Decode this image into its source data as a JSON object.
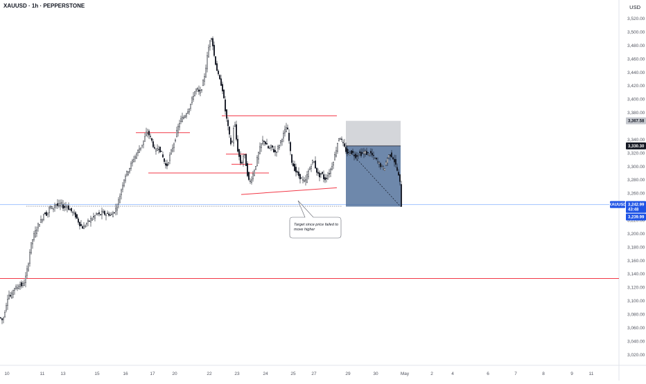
{
  "header": {
    "title": "XAUUSD · 1h · PEPPERSTONE",
    "currency": "USD"
  },
  "colors": {
    "candle": "#131722",
    "level": "#f23645",
    "box_loss": "#c5c8ce",
    "box_profit": "#4a6a96",
    "price_tag": "#1e53e5"
  },
  "chart_data": {
    "type": "candlestick",
    "symbol": "XAUUSD",
    "timeframe": "1h",
    "ylim": [
      3010,
      3535
    ],
    "y_ticks": [
      3020,
      3040,
      3060,
      3080,
      3100,
      3120,
      3140,
      3160,
      3180,
      3200,
      3220,
      3260,
      3280,
      3300,
      3320,
      3340,
      3380,
      3400,
      3420,
      3440,
      3460,
      3480,
      3500,
      3520
    ],
    "y_tick_labels": [
      "3,020.00",
      "3,040.00",
      "3,060.00",
      "3,080.00",
      "3,100.00",
      "3,120.00",
      "3,140.00",
      "3,160.00",
      "3,180.00",
      "3,200.00",
      "3,220.00",
      "3,260.00",
      "3,280.00",
      "3,300.00",
      "3,320.00",
      "3,340.00",
      "3,380.00",
      "3,400.00",
      "3,420.00",
      "3,440.00",
      "3,460.00",
      "3,480.00",
      "3,500.00",
      "3,520.00"
    ],
    "x_labels": [
      "10",
      "11",
      "13",
      "15",
      "16",
      "17",
      "20",
      "22",
      "23",
      "24",
      "25",
      "27",
      "29",
      "30",
      "May",
      "2",
      "4",
      "6",
      "7",
      "8",
      "9",
      "11"
    ],
    "series_path": [
      [
        0,
        3075
      ],
      [
        4,
        3070
      ],
      [
        8,
        3090
      ],
      [
        12,
        3110
      ],
      [
        16,
        3105
      ],
      [
        20,
        3120
      ],
      [
        24,
        3118
      ],
      [
        28,
        3125
      ],
      [
        32,
        3122
      ],
      [
        36,
        3130
      ],
      [
        40,
        3150
      ],
      [
        44,
        3180
      ],
      [
        48,
        3195
      ],
      [
        52,
        3205
      ],
      [
        56,
        3215
      ],
      [
        60,
        3220
      ],
      [
        64,
        3232
      ],
      [
        68,
        3228
      ],
      [
        72,
        3240
      ],
      [
        76,
        3237
      ],
      [
        80,
        3245
      ],
      [
        84,
        3240
      ],
      [
        88,
        3245
      ],
      [
        92,
        3238
      ],
      [
        96,
        3242
      ],
      [
        100,
        3236
      ],
      [
        104,
        3232
      ],
      [
        108,
        3228
      ],
      [
        112,
        3220
      ],
      [
        116,
        3212
      ],
      [
        120,
        3208
      ],
      [
        124,
        3214
      ],
      [
        128,
        3218
      ],
      [
        132,
        3222
      ],
      [
        136,
        3225
      ],
      [
        140,
        3230
      ],
      [
        144,
        3227
      ],
      [
        148,
        3232
      ],
      [
        152,
        3228
      ],
      [
        156,
        3230
      ],
      [
        160,
        3226
      ],
      [
        164,
        3232
      ],
      [
        168,
        3238
      ],
      [
        172,
        3252
      ],
      [
        176,
        3270
      ],
      [
        180,
        3285
      ],
      [
        184,
        3292
      ],
      [
        188,
        3300
      ],
      [
        192,
        3310
      ],
      [
        196,
        3316
      ],
      [
        200,
        3325
      ],
      [
        204,
        3330
      ],
      [
        208,
        3340
      ],
      [
        212,
        3352
      ],
      [
        216,
        3345
      ],
      [
        220,
        3335
      ],
      [
        224,
        3320
      ],
      [
        228,
        3330
      ],
      [
        232,
        3322
      ],
      [
        236,
        3310
      ],
      [
        240,
        3298
      ],
      [
        244,
        3312
      ],
      [
        248,
        3325
      ],
      [
        252,
        3338
      ],
      [
        256,
        3355
      ],
      [
        260,
        3368
      ],
      [
        264,
        3372
      ],
      [
        268,
        3378
      ],
      [
        272,
        3385
      ],
      [
        276,
        3395
      ],
      [
        280,
        3410
      ],
      [
        284,
        3415
      ],
      [
        288,
        3408
      ],
      [
        292,
        3420
      ],
      [
        296,
        3440
      ],
      [
        300,
        3470
      ],
      [
        304,
        3495
      ],
      [
        306,
        3490
      ],
      [
        308,
        3470
      ],
      [
        312,
        3448
      ],
      [
        316,
        3430
      ],
      [
        320,
        3420
      ],
      [
        322,
        3408
      ],
      [
        324,
        3390
      ],
      [
        326,
        3375
      ],
      [
        328,
        3365
      ],
      [
        330,
        3350
      ],
      [
        332,
        3340
      ],
      [
        334,
        3328
      ],
      [
        336,
        3345
      ],
      [
        338,
        3370
      ],
      [
        340,
        3350
      ],
      [
        342,
        3330
      ],
      [
        344,
        3318
      ],
      [
        346,
        3310
      ],
      [
        348,
        3300
      ],
      [
        350,
        3312
      ],
      [
        352,
        3320
      ],
      [
        354,
        3310
      ],
      [
        356,
        3295
      ],
      [
        358,
        3282
      ],
      [
        360,
        3275
      ],
      [
        364,
        3285
      ],
      [
        368,
        3298
      ],
      [
        372,
        3315
      ],
      [
        376,
        3330
      ],
      [
        380,
        3340
      ],
      [
        384,
        3332
      ],
      [
        388,
        3325
      ],
      [
        392,
        3330
      ],
      [
        396,
        3320
      ],
      [
        400,
        3325
      ],
      [
        404,
        3335
      ],
      [
        408,
        3345
      ],
      [
        412,
        3355
      ],
      [
        414,
        3360
      ],
      [
        416,
        3345
      ],
      [
        418,
        3330
      ],
      [
        420,
        3310
      ],
      [
        424,
        3298
      ],
      [
        428,
        3290
      ],
      [
        432,
        3285
      ],
      [
        436,
        3280
      ],
      [
        440,
        3275
      ],
      [
        444,
        3290
      ],
      [
        448,
        3300
      ],
      [
        452,
        3310
      ],
      [
        456,
        3295
      ],
      [
        460,
        3285
      ],
      [
        464,
        3290
      ],
      [
        468,
        3280
      ],
      [
        472,
        3285
      ],
      [
        476,
        3292
      ],
      [
        480,
        3305
      ],
      [
        484,
        3320
      ],
      [
        488,
        3340
      ],
      [
        490,
        3345
      ],
      [
        494,
        3335
      ],
      [
        498,
        3325
      ],
      [
        502,
        3318
      ],
      [
        506,
        3322
      ],
      [
        510,
        3318
      ],
      [
        514,
        3315
      ],
      [
        518,
        3320
      ],
      [
        522,
        3318
      ],
      [
        526,
        3322
      ],
      [
        530,
        3318
      ],
      [
        534,
        3320
      ],
      [
        538,
        3315
      ],
      [
        542,
        3310
      ],
      [
        546,
        3305
      ],
      [
        550,
        3300
      ],
      [
        554,
        3295
      ],
      [
        558,
        3310
      ],
      [
        562,
        3318
      ],
      [
        566,
        3315
      ],
      [
        570,
        3305
      ],
      [
        574,
        3290
      ],
      [
        577,
        3275
      ],
      [
        579,
        3242
      ]
    ],
    "levels": [
      {
        "value": 3242.99,
        "x0": 0,
        "x1": 893,
        "color": "#9fc3ff"
      },
      {
        "value": 3133,
        "x0": 0,
        "x1": 893,
        "color": "#f23645"
      },
      {
        "value": 3350,
        "x0": 196,
        "x1": 274,
        "color": "#f23645"
      },
      {
        "value": 3290,
        "x0": 214,
        "x1": 388,
        "color": "#f23645"
      },
      {
        "value": 3375,
        "x0": 320,
        "x1": 486,
        "color": "#f23645"
      },
      {
        "value": 3318,
        "x0": 326,
        "x1": 356,
        "color": "#f23645"
      },
      {
        "value": 3303,
        "x0": 334,
        "x1": 364,
        "color": "#f23645"
      }
    ],
    "trendline": {
      "x0": 348,
      "y0": 3258,
      "x1": 486,
      "y1": 3268,
      "color": "#f23645"
    },
    "position": {
      "x0": 499,
      "x1": 578,
      "stop": 3367.58,
      "entry": 3330.3,
      "target": 3239.99
    },
    "price_tags": [
      {
        "value": 3367.58,
        "label": "3,367.58",
        "bg": "#c5c8ce",
        "fg": "#131722"
      },
      {
        "value": 3330.3,
        "label": "3,330.30",
        "bg": "#131722",
        "fg": "#ffffff"
      },
      {
        "value": 3242.99,
        "label": "3,242.99",
        "bg": "#1e53e5",
        "fg": "#ffffff"
      },
      {
        "value": 3239.99,
        "label": "3,239.99",
        "bg": "#1e53e5",
        "fg": "#ffffff"
      }
    ],
    "current_symbol_tag": "XAUUSD",
    "countdown": "43:48",
    "annotation": {
      "lines": [
        "Target since price failed to",
        "move higher"
      ]
    }
  }
}
